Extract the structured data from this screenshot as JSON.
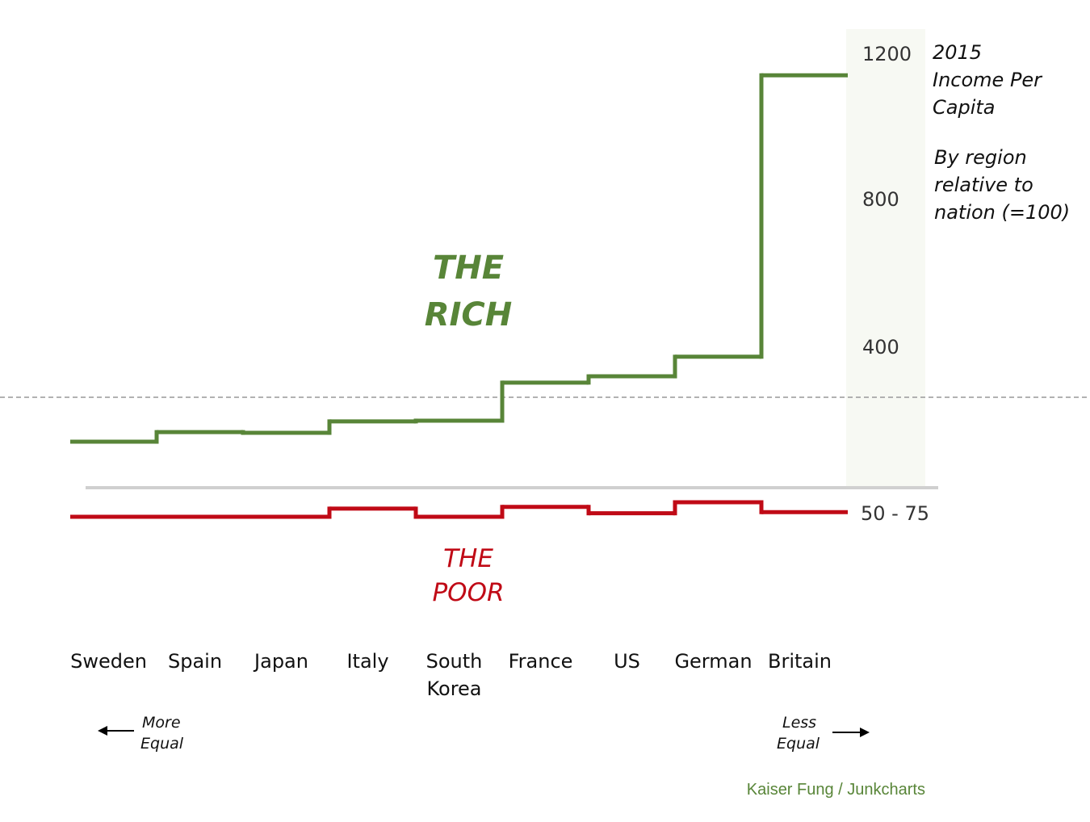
{
  "chart_data": {
    "type": "line",
    "style": "step",
    "title_lines": [
      "2015",
      "Income Per",
      "Capita"
    ],
    "subtitle_lines": [
      "By region",
      "relative to",
      "nation (=100)"
    ],
    "categories": [
      "Sweden",
      "Spain",
      "Japan",
      "Italy",
      "South Korea",
      "France",
      "US",
      "German",
      "Britain"
    ],
    "category_labels": [
      [
        "Sweden"
      ],
      [
        "Spain"
      ],
      [
        "Japan"
      ],
      [
        "Italy"
      ],
      [
        "South",
        "Korea"
      ],
      [
        "France"
      ],
      [
        "US"
      ],
      [
        "German"
      ],
      [
        "Britain"
      ]
    ],
    "series": [
      {
        "name": "The Rich",
        "label_lines": [
          "THE",
          "RICH"
        ],
        "color": "#588538",
        "values": [
          142,
          168,
          166,
          197,
          199,
          302,
          319,
          372,
          1134
        ]
      },
      {
        "name": "The Poor",
        "label_lines": [
          "THE",
          "POOR"
        ],
        "color": "#c00a16",
        "values": [
          50,
          50,
          50,
          64,
          50,
          67,
          56,
          75,
          58
        ]
      }
    ],
    "y_ticks": [
      "1200",
      "800",
      "400"
    ],
    "y_tick_values": [
      1200,
      800,
      400
    ],
    "poor_range_label": "50 - 75",
    "reference_line_value": 262,
    "left_annotation": [
      "More",
      "Equal"
    ],
    "right_annotation": [
      "Less",
      "Equal"
    ],
    "credit": "Kaiser Fung / Junkcharts"
  }
}
